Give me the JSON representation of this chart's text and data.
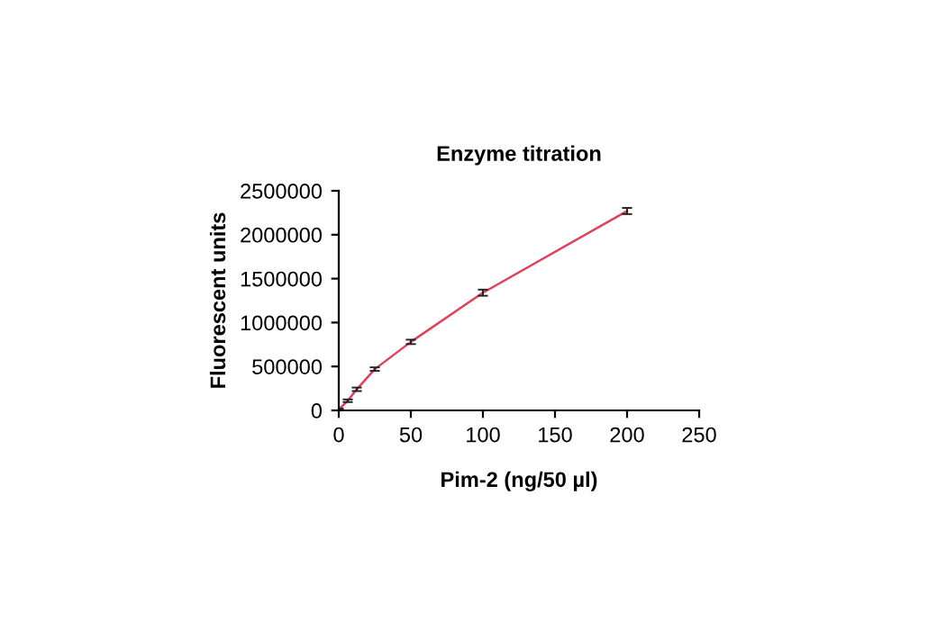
{
  "chart_data": {
    "type": "line",
    "title": "Enzyme titration",
    "xlabel": "Pim-2 (ng/50 µl)",
    "ylabel": "Fluorescent units",
    "x": [
      0,
      6.25,
      12.5,
      25,
      50,
      100,
      200
    ],
    "series": [
      {
        "color": "#e0405a",
        "values": [
          10000,
          110000,
          240000,
          470000,
          780000,
          1340000,
          2270000
        ],
        "errors": [
          10000,
          15000,
          20000,
          20000,
          25000,
          35000,
          35000
        ]
      }
    ],
    "xlim": [
      0,
      250
    ],
    "xticks": [
      0,
      50,
      100,
      150,
      200,
      250
    ],
    "ylim": [
      0,
      2500000
    ],
    "yticks": [
      0,
      500000,
      1000000,
      1500000,
      2000000,
      2500000
    ],
    "grid": false,
    "legend": false,
    "marker": "none",
    "line_style": "solid"
  }
}
